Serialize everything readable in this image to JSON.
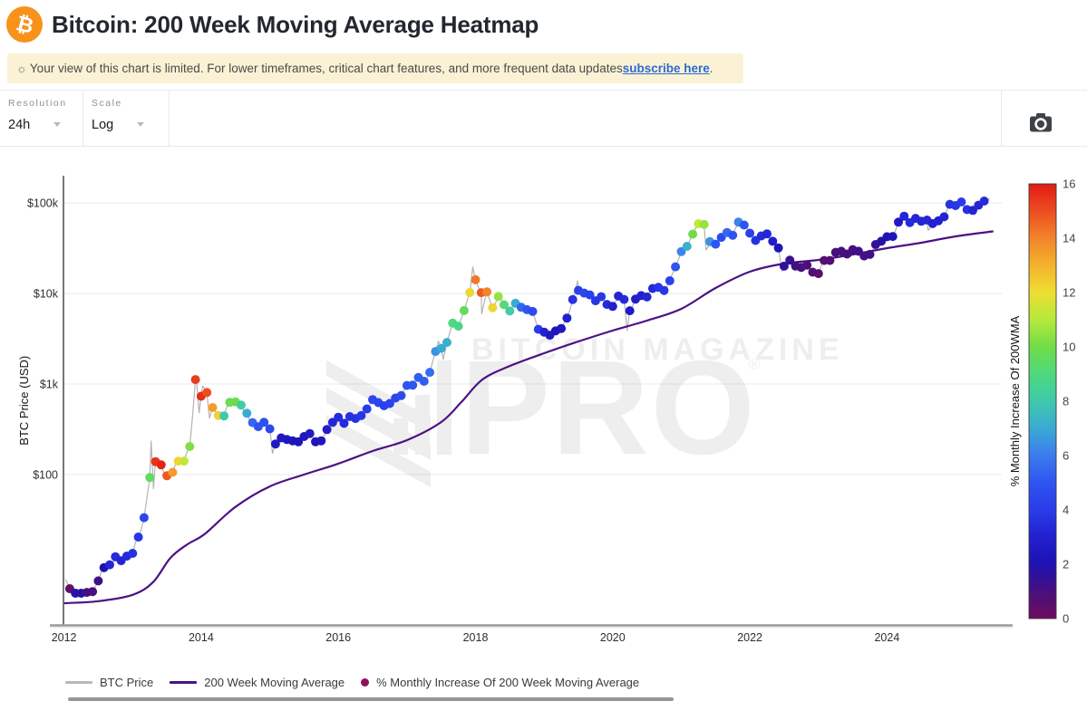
{
  "header": {
    "title": "Bitcoin: 200 Week Moving Average Heatmap",
    "logo_symbol": "₿"
  },
  "notice": {
    "icon": "☼",
    "text_before_link": "Your view of this chart is limited. For lower timeframes, critical chart features, and more frequent data updates ",
    "link_text": "subscribe here",
    "text_after_link": "."
  },
  "toolbar": {
    "resolution_label": "Resolution",
    "resolution_value": "24h",
    "scale_label": "Scale",
    "scale_value": "Log",
    "camera_icon": "camera"
  },
  "legend": {
    "items": [
      {
        "label": "BTC Price",
        "swatch": "line",
        "color": "#b8b8b8"
      },
      {
        "label": "200 Week Moving Average",
        "swatch": "line",
        "color": "#4b1284"
      },
      {
        "label": "% Monthly Increase Of 200 Week Moving Average",
        "swatch": "dot",
        "color": "#8e1062"
      }
    ]
  },
  "chart_data": {
    "type": "scatter",
    "ylabel": "BTC Price (USD)",
    "y_scale": "log",
    "x_range": [
      2011.99,
      2025.68
    ],
    "y_ticks": [
      {
        "label": "$100k",
        "value": 100000
      },
      {
        "label": "$10k",
        "value": 10000
      },
      {
        "label": "$1k",
        "value": 1000
      },
      {
        "label": "$100",
        "value": 100
      }
    ],
    "x_ticks": [
      2012,
      2014,
      2016,
      2018,
      2020,
      2022,
      2024
    ],
    "grid": true,
    "colorbar": {
      "label": "% Monthly Increase Of 200WMA",
      "min": 0,
      "max": 16,
      "ticks": [
        0,
        2,
        4,
        6,
        8,
        10,
        12,
        14,
        16
      ],
      "stops": [
        "#6e0c5e",
        "#48107e",
        "#1d12b2",
        "#2220cf",
        "#2a3cea",
        "#2e55f0",
        "#3c7bee",
        "#3aaad4",
        "#3fc9ab",
        "#4ed97e",
        "#72dc48",
        "#b5e93c",
        "#eede33",
        "#f3b32c",
        "#f2842a",
        "#ec4d21",
        "#e01b15"
      ]
    },
    "watermark": {
      "line1": "BITCOIN MAGAZINE",
      "pro": "PRO",
      "reg": "®"
    },
    "series": {
      "months_start": "2012-01",
      "btc_price_monthly": [
        5.5,
        4.9,
        4.9,
        5.0,
        5.1,
        6.7,
        9.4,
        10.1,
        12.4,
        11.2,
        12.6,
        13.5,
        20.4,
        33.4,
        93,
        139,
        128,
        97,
        106,
        141,
        141,
        204,
        1120,
        732,
        806,
        550,
        450,
        445,
        628,
        635,
        585,
        475,
        375,
        338,
        378,
        320,
        218,
        254,
        244,
        236,
        230,
        263,
        284,
        230,
        236,
        314,
        377,
        430,
        368,
        437,
        416,
        448,
        531,
        673,
        624,
        575,
        609,
        700,
        745,
        963,
        970,
        1180,
        1071,
        1347,
        2286,
        2480,
        2875,
        4703,
        4360,
        6468,
        10233,
        14156,
        10221,
        10397,
        6973,
        9240,
        7494,
        6404,
        7780,
        7037,
        6625,
        6317,
        4017,
        3742,
        3457,
        3854,
        4105,
        5350,
        8574,
        10817,
        10085,
        9630,
        8308,
        9199,
        7569,
        7193,
        9350,
        8599,
        6438,
        8658,
        9461,
        9137,
        11351,
        11655,
        10784,
        13797,
        19698,
        28996,
        33108,
        45164,
        58763,
        57720,
        37298,
        35026,
        41553,
        47130,
        43824,
        61318,
        56882,
        46211,
        38491,
        43193,
        45528,
        37644,
        31784,
        19985,
        23307,
        20049,
        19426,
        20489,
        17167,
        16547,
        23130,
        23137,
        28474,
        29233,
        27216,
        30472,
        29232,
        25932,
        26962,
        34653,
        37712,
        42272,
        42580,
        61199,
        71334,
        60637,
        67472,
        62673,
        64619,
        58969,
        63330,
        70215,
        96450,
        93429,
        102405,
        84350,
        82550,
        94200,
        104600
      ],
      "wma_monthly_increase_pct": [
        0.4,
        1.8,
        1.8,
        1.0,
        1.0,
        1.2,
        2.0,
        3.2,
        3.4,
        3.2,
        3.4,
        3.6,
        3.8,
        4.4,
        9.5,
        15.5,
        15.8,
        14.8,
        13.5,
        12.2,
        11.2,
        10.2,
        15.3,
        15.6,
        15.0,
        13.5,
        12.3,
        8.0,
        9.8,
        9.9,
        8.2,
        7.0,
        5.5,
        5.0,
        4.8,
        4.5,
        2.6,
        2.4,
        2.4,
        2.2,
        2.2,
        2.4,
        2.6,
        2.2,
        2.4,
        2.8,
        3.2,
        3.4,
        3.4,
        3.6,
        3.6,
        3.8,
        4.0,
        4.4,
        4.4,
        4.2,
        4.2,
        4.4,
        4.6,
        5.0,
        5.0,
        5.2,
        5.2,
        5.6,
        6.5,
        7.0,
        7.2,
        9.0,
        8.8,
        9.6,
        12.2,
        14.2,
        14.8,
        14.0,
        12.2,
        10.5,
        9.2,
        8.2,
        7.0,
        5.5,
        5.0,
        4.5,
        4.0,
        3.0,
        2.4,
        2.2,
        2.4,
        3.0,
        3.6,
        4.2,
        4.4,
        4.2,
        3.8,
        3.8,
        3.4,
        3.0,
        3.2,
        3.4,
        2.6,
        2.8,
        3.0,
        3.2,
        3.4,
        3.8,
        3.8,
        4.2,
        5.0,
        6.2,
        7.2,
        10.0,
        11.2,
        10.5,
        6.5,
        5.0,
        4.5,
        5.5,
        5.0,
        6.2,
        5.0,
        4.2,
        3.6,
        3.4,
        3.2,
        2.8,
        2.2,
        1.6,
        1.4,
        1.2,
        1.0,
        0.9,
        0.7,
        0.5,
        0.6,
        0.7,
        0.9,
        1.0,
        1.0,
        1.1,
        1.2,
        1.1,
        1.2,
        1.5,
        1.8,
        2.1,
        2.2,
        2.6,
        3.2,
        3.4,
        3.2,
        3.2,
        3.2,
        3.0,
        3.0,
        3.2,
        3.6,
        3.8,
        4.0,
        3.6,
        3.2,
        3.2,
        3.4
      ],
      "wma_line_anchors": [
        [
          2012.0,
          3.8
        ],
        [
          2012.5,
          4.0
        ],
        [
          2013.0,
          4.7
        ],
        [
          2013.3,
          6.5
        ],
        [
          2013.55,
          12
        ],
        [
          2013.8,
          17
        ],
        [
          2014.05,
          22
        ],
        [
          2014.5,
          44
        ],
        [
          2015.0,
          74
        ],
        [
          2015.5,
          100
        ],
        [
          2016.0,
          132
        ],
        [
          2016.5,
          182
        ],
        [
          2017.0,
          240
        ],
        [
          2017.5,
          380
        ],
        [
          2017.8,
          640
        ],
        [
          2018.1,
          1120
        ],
        [
          2018.5,
          1580
        ],
        [
          2019.0,
          2190
        ],
        [
          2019.5,
          2950
        ],
        [
          2020.0,
          3890
        ],
        [
          2020.5,
          5010
        ],
        [
          2021.0,
          6760
        ],
        [
          2021.5,
          11480
        ],
        [
          2022.0,
          17380
        ],
        [
          2022.5,
          21380
        ],
        [
          2023.0,
          23440
        ],
        [
          2023.5,
          26920
        ],
        [
          2024.0,
          31620
        ],
        [
          2024.5,
          36310
        ],
        [
          2025.0,
          42660
        ],
        [
          2025.55,
          48500
        ]
      ],
      "price_spikes": [
        [
          2012.02,
          7.0
        ],
        [
          2013.27,
          235
        ],
        [
          2013.305,
          70
        ],
        [
          2013.93,
          1150
        ],
        [
          2013.97,
          480
        ],
        [
          2014.02,
          950
        ],
        [
          2014.12,
          420
        ],
        [
          2015.04,
          172
        ],
        [
          2017.46,
          2980
        ],
        [
          2017.53,
          1870
        ],
        [
          2017.96,
          19500
        ],
        [
          2018.09,
          5950
        ],
        [
          2019.49,
          13800
        ],
        [
          2020.21,
          3900
        ],
        [
          2021.36,
          30200
        ],
        [
          2022.47,
          17600
        ],
        [
          2024.2,
          73500
        ],
        [
          2024.6,
          49600
        ],
        [
          2025.07,
          108900
        ],
        [
          2025.28,
          75100
        ],
        [
          2025.5,
          110000
        ]
      ]
    },
    "line_colors": {
      "btc_price": "#b4b4b4",
      "wma": "#4b1284"
    }
  }
}
